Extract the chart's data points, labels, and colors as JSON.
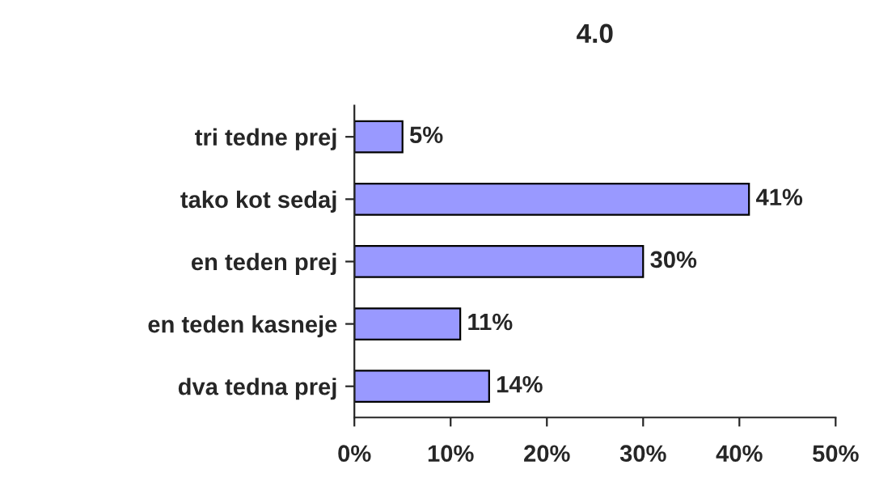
{
  "chart_data": {
    "type": "bar",
    "orientation": "horizontal",
    "title": "4.0",
    "categories": [
      "tri tedne prej",
      "tako kot sedaj",
      "en teden prej",
      "en teden kasneje",
      "dva tedna prej"
    ],
    "values": [
      5,
      41,
      30,
      11,
      14
    ],
    "value_labels": [
      "5%",
      "41%",
      "30%",
      "11%",
      "14%"
    ],
    "color": "#9999ff",
    "xlim": [
      0,
      50
    ],
    "xticks": [
      {
        "value": 0,
        "label": "0%"
      },
      {
        "value": 10,
        "label": "10%"
      },
      {
        "value": 20,
        "label": "20%"
      },
      {
        "value": 30,
        "label": "30%"
      },
      {
        "value": 40,
        "label": "40%"
      },
      {
        "value": 50,
        "label": "50%"
      }
    ],
    "grid": false,
    "legend": false
  }
}
